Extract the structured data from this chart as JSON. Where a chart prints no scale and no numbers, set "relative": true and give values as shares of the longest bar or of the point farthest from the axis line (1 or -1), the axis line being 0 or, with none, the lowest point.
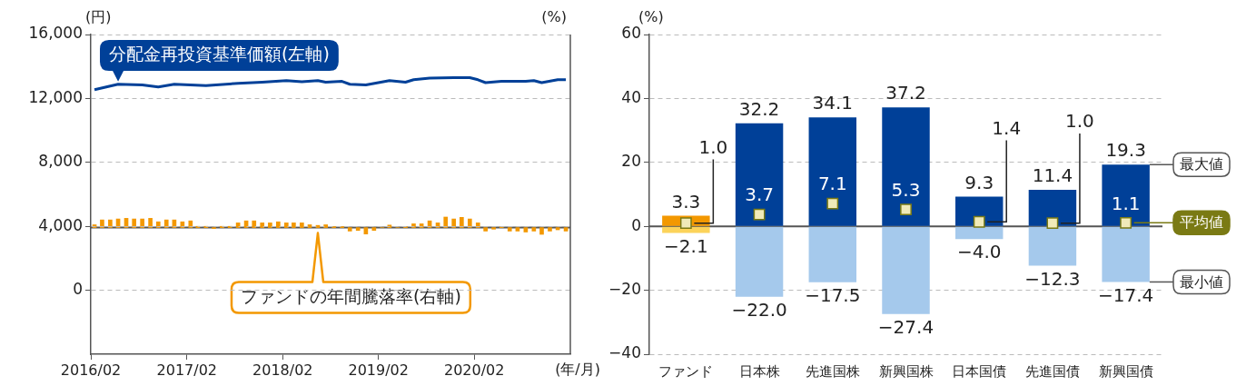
{
  "chart_data": [
    {
      "type": "line",
      "ylabel": "(円)",
      "y2label": "(%)",
      "xlabel": "(年/月)",
      "xlim": [
        "2016-02",
        "2021-02"
      ],
      "xticks": [
        {
          "value": "2016-02",
          "label": "2016/02"
        },
        {
          "value": "2017-02",
          "label": "2017/02"
        },
        {
          "value": "2018-02",
          "label": "2018/02"
        },
        {
          "value": "2019-02",
          "label": "2019/02"
        },
        {
          "value": "2020-02",
          "label": "2020/02"
        }
      ],
      "ylim": [
        -4000,
        16000
      ],
      "yticks": [
        0,
        {
          "value": 4000,
          "label": "4,000"
        },
        {
          "value": 8000,
          "label": "8,000"
        },
        {
          "value": 12000,
          "label": "12,000"
        },
        {
          "value": 16000,
          "label": "16,000"
        }
      ],
      "grid": "y",
      "series": [
        {
          "name": "分配金再投資基準価額(左軸)",
          "color": "#004098",
          "x": [
            "2016-02-15",
            "2016-05-15",
            "2016-08-15",
            "2016-10-15",
            "2016-12-15",
            "2017-04-15",
            "2017-08-15",
            "2017-11-15",
            "2018-02-15",
            "2018-04-15",
            "2018-06-15",
            "2018-07-15",
            "2018-09-15",
            "2018-10-15",
            "2018-12-15",
            "2019-03-15",
            "2019-05-15",
            "2019-06-15",
            "2019-08-15",
            "2019-11-15",
            "2020-01-15",
            "2020-02-15",
            "2020-03-15",
            "2020-05-15",
            "2020-08-15",
            "2020-09-15",
            "2020-10-15",
            "2020-12-15",
            "2021-01-15"
          ],
          "values": [
            12550,
            12890,
            12850,
            12720,
            12890,
            12800,
            12950,
            13020,
            13120,
            13040,
            13120,
            13020,
            13070,
            12890,
            12850,
            13120,
            13020,
            13170,
            13270,
            13300,
            13300,
            13170,
            12990,
            13070,
            13070,
            13120,
            12990,
            13170,
            13170
          ]
        }
      ]
    },
    {
      "type": "bar",
      "relative": true,
      "xlim": [
        "2016-02",
        "2021-02"
      ],
      "tick_labels": false,
      "series": [
        {
          "name": "ファンドの年間騰落率(右軸)",
          "color": "#f39800",
          "x": [
            "2016-02-15",
            "2016-03-15",
            "2016-04-15",
            "2016-05-15",
            "2016-06-15",
            "2016-07-15",
            "2016-08-15",
            "2016-09-15",
            "2016-10-15",
            "2016-11-15",
            "2016-12-15",
            "2017-01-15",
            "2017-02-15",
            "2017-03-15",
            "2017-04-15",
            "2017-05-15",
            "2017-06-15",
            "2017-07-15",
            "2017-08-15",
            "2017-09-15",
            "2017-10-15",
            "2017-11-15",
            "2017-12-15",
            "2018-01-15",
            "2018-02-15",
            "2018-03-15",
            "2018-04-15",
            "2018-05-15",
            "2018-06-15",
            "2018-07-15",
            "2018-08-15",
            "2018-09-15",
            "2018-10-15",
            "2018-11-15",
            "2018-12-15",
            "2019-01-15",
            "2019-02-15",
            "2019-03-15",
            "2019-04-15",
            "2019-05-15",
            "2019-06-15",
            "2019-07-15",
            "2019-08-15",
            "2019-09-15",
            "2019-10-15",
            "2019-11-15",
            "2019-12-15",
            "2020-01-15",
            "2020-02-15",
            "2020-03-15",
            "2020-04-15",
            "2020-05-15",
            "2020-06-15",
            "2020-07-15",
            "2020-08-15",
            "2020-09-15",
            "2020-10-15",
            "2020-11-15",
            "2020-12-15",
            "2021-01-15"
          ],
          "values": [
            0.27,
            0.73,
            0.73,
            0.82,
            0.88,
            0.82,
            0.82,
            0.88,
            0.55,
            0.73,
            0.73,
            0.55,
            0.64,
            0.12,
            0.12,
            -0.09,
            0.12,
            0.12,
            0.45,
            0.64,
            0.64,
            0.45,
            0.45,
            0.55,
            0.45,
            0.45,
            0.45,
            0.27,
            0.21,
            0.27,
            0.09,
            0.09,
            -0.33,
            -0.27,
            -0.61,
            -0.27,
            0,
            0.24,
            0,
            0.09,
            0.36,
            0.36,
            0.64,
            0.45,
            1,
            0.82,
            0.97,
            0.82,
            0.45,
            -0.33,
            -0.15,
            0.09,
            -0.33,
            -0.33,
            -0.42,
            -0.33,
            -0.64,
            -0.33,
            -0.21,
            -0.33
          ]
        }
      ]
    },
    {
      "type": "bar",
      "ylabel": "(%)",
      "stacked": true,
      "legend": "right",
      "grid": "y",
      "categories": [
        "ファンド",
        "日本株",
        "先進国株",
        "新興国株",
        "日本国債",
        "先進国債",
        "新興国債"
      ],
      "ylim": [
        -40,
        60
      ],
      "yticks": [
        {
          "value": -40,
          "label": "−40"
        },
        {
          "value": -20,
          "label": "−20"
        },
        0,
        20,
        40,
        60
      ],
      "ref_lines": [
        {
          "axis": "y",
          "value": 0
        }
      ],
      "series": [
        {
          "name": "最大値",
          "type": "bar",
          "colors": [
            "#f39800",
            "#004098",
            "#004098",
            "#004098",
            "#004098",
            "#004098",
            "#004098"
          ],
          "values": [
            3.3,
            32.2,
            34.1,
            37.2,
            9.3,
            11.4,
            19.3
          ],
          "value_labels": [
            "3.3",
            "32.2",
            "34.1",
            "37.2",
            "9.3",
            "11.4",
            "19.3"
          ]
        },
        {
          "name": "最小値",
          "type": "bar",
          "colors": [
            "#fcd35a",
            "#a5c9ec",
            "#a5c9ec",
            "#a5c9ec",
            "#a5c9ec",
            "#a5c9ec",
            "#a5c9ec"
          ],
          "values": [
            -2.1,
            -22.0,
            -17.5,
            -27.4,
            -4.0,
            -12.3,
            -17.4
          ],
          "value_labels": [
            "−2.1",
            "−22.0",
            "−17.5",
            "−27.4",
            "−4.0",
            "−12.3",
            "−17.4"
          ]
        },
        {
          "name": "平均値",
          "type": "scatter",
          "marker": "square",
          "color": "#7a7a14",
          "colors": [
            "#f0eab9",
            "#f0eab9",
            "#f0eab9",
            "#f0eab9",
            "#f0eab9",
            "#f0eab9",
            "#f0eab9"
          ],
          "values": [
            1.0,
            3.7,
            7.1,
            5.3,
            1.4,
            1.0,
            1.1
          ],
          "value_labels": [
            "1.0",
            "3.7",
            "7.1",
            "5.3",
            "1.4",
            "1.0",
            "1.1"
          ]
        }
      ]
    }
  ]
}
